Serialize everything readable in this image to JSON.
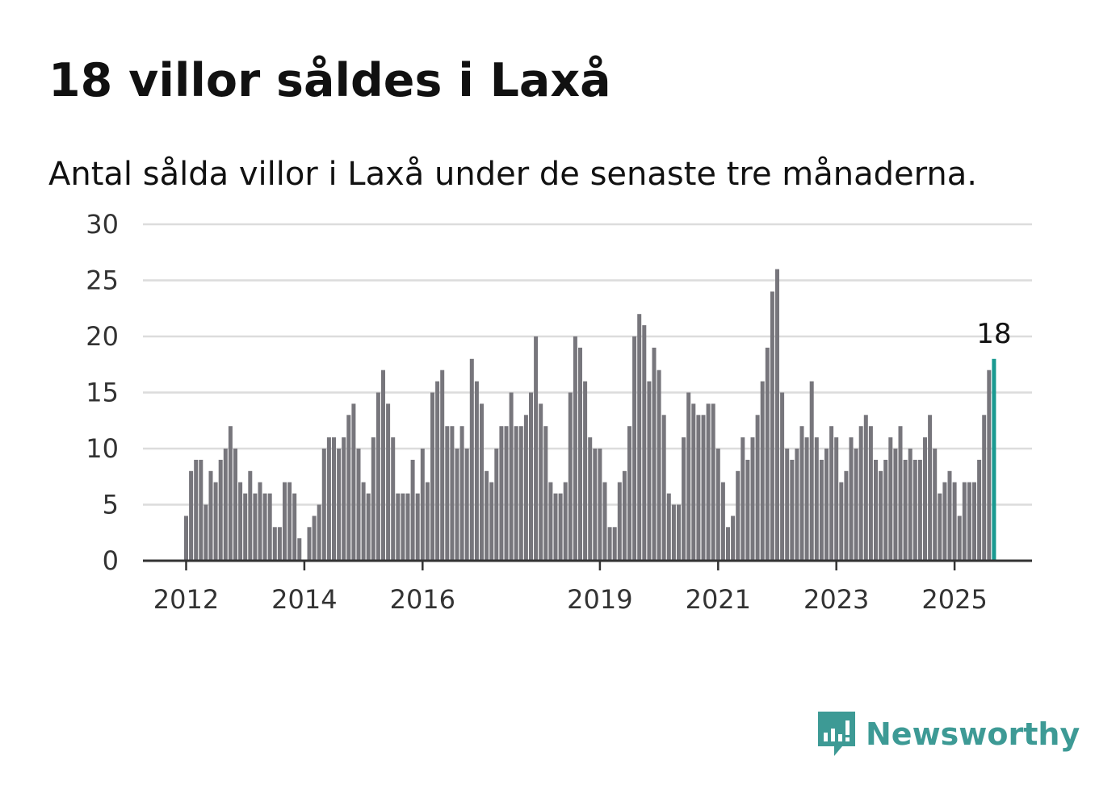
{
  "header": {
    "title": "18 villor såldes i Laxå",
    "subtitle": "Antal sålda villor i Laxå under de senaste tre månaderna."
  },
  "brand": {
    "name": "Newsworthy",
    "icon": "newsworthy-logo-icon",
    "color": "#3d9a95"
  },
  "colors": {
    "bar": "#77767c",
    "highlight": "#1a9a91",
    "grid": "#dcdcdc",
    "axis": "#333333"
  },
  "chart_data": {
    "type": "bar",
    "title": "18 villor såldes i Laxå",
    "subtitle": "Antal sålda villor i Laxå under de senaste tre månaderna.",
    "xlabel": "",
    "ylabel": "",
    "ylim": [
      0,
      30
    ],
    "yticks": [
      0,
      5,
      10,
      15,
      20,
      25,
      30
    ],
    "xticks": [
      {
        "label": "2012",
        "index": 0
      },
      {
        "label": "2014",
        "index": 24
      },
      {
        "label": "2016",
        "index": 48
      },
      {
        "label": "2019",
        "index": 84
      },
      {
        "label": "2021",
        "index": 108
      },
      {
        "label": "2023",
        "index": 132
      },
      {
        "label": "2025",
        "index": 156
      }
    ],
    "grid": true,
    "legend": "none",
    "start": "2012-01",
    "frequency": "monthly",
    "values": [
      4,
      8,
      9,
      9,
      5,
      8,
      7,
      9,
      10,
      12,
      10,
      7,
      6,
      8,
      6,
      7,
      6,
      6,
      3,
      3,
      7,
      7,
      6,
      2,
      0,
      3,
      4,
      5,
      10,
      11,
      11,
      10,
      11,
      13,
      14,
      10,
      7,
      6,
      11,
      15,
      17,
      14,
      11,
      6,
      6,
      6,
      9,
      6,
      10,
      7,
      15,
      16,
      17,
      12,
      12,
      10,
      12,
      10,
      18,
      16,
      14,
      8,
      7,
      10,
      12,
      12,
      15,
      12,
      12,
      13,
      15,
      20,
      14,
      12,
      7,
      6,
      6,
      7,
      15,
      20,
      19,
      16,
      11,
      10,
      10,
      7,
      3,
      3,
      7,
      8,
      12,
      20,
      22,
      21,
      16,
      19,
      17,
      13,
      6,
      5,
      5,
      11,
      15,
      14,
      13,
      13,
      14,
      14,
      10,
      7,
      3,
      4,
      8,
      11,
      9,
      11,
      13,
      16,
      19,
      24,
      26,
      15,
      10,
      9,
      10,
      12,
      11,
      16,
      11,
      9,
      10,
      12,
      11,
      7,
      8,
      11,
      10,
      12,
      13,
      12,
      9,
      8,
      9,
      11,
      10,
      12,
      9,
      10,
      9,
      9,
      11,
      13,
      10,
      6,
      7,
      8,
      7,
      4,
      7,
      7,
      7,
      9,
      13,
      17,
      18
    ],
    "highlight": {
      "index": 164,
      "value": 18,
      "label": "18"
    }
  }
}
